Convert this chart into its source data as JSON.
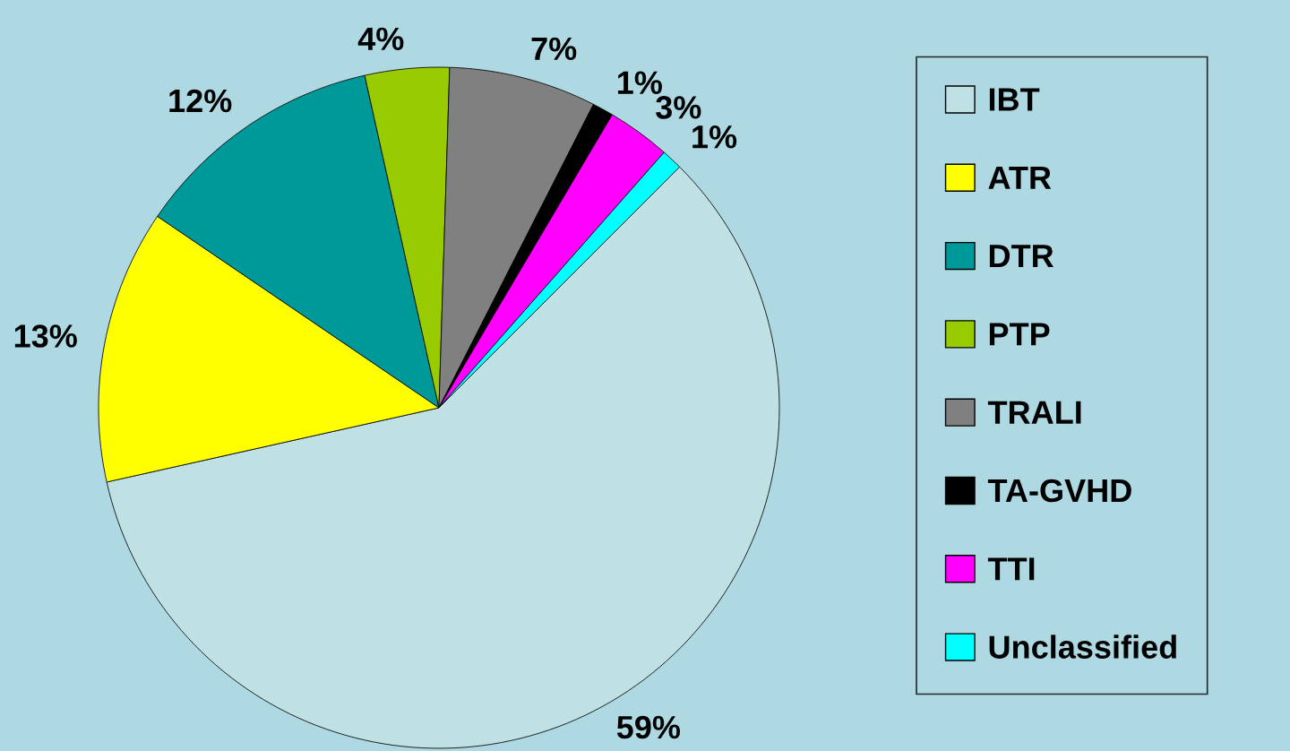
{
  "chart_data": {
    "type": "pie",
    "categories": [
      "IBT",
      "ATR",
      "DTR",
      "PTP",
      "TRALI",
      "TA-GVHD",
      "TTI",
      "Unclassified"
    ],
    "values": [
      59,
      13,
      12,
      4,
      7,
      1,
      3,
      1
    ],
    "colors": [
      "#bfe1e4",
      "#ffff00",
      "#009999",
      "#99cc00",
      "#808080",
      "#000000",
      "#ff00ff",
      "#00ffff"
    ],
    "value_labels": [
      "59%",
      "13%",
      "12%",
      "4%",
      "7%",
      "1%",
      "3%",
      "1%"
    ],
    "legend": "right"
  }
}
